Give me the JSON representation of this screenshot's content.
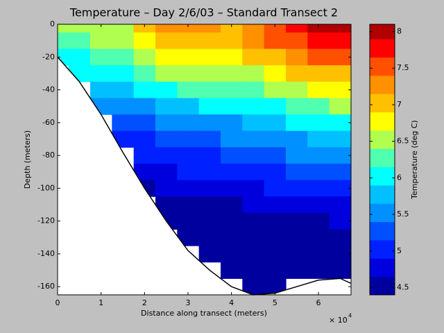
{
  "chart_data": {
    "type": "contour",
    "title": "Temperature – Day 2/6/03 – Standard Transect 2",
    "x_label": "Distance along transect (meters)",
    "y_label": "Depth (meters)",
    "x_multiplier": "× 10",
    "x_exponent": "4",
    "colorbar_label": "Temperature (deg C)",
    "xlim": [
      0,
      6.75
    ],
    "xticks": [
      0,
      1,
      2,
      3,
      4,
      5,
      6
    ],
    "ylim": [
      -165,
      0
    ],
    "yticks": [
      -160,
      -140,
      -120,
      -100,
      -80,
      -60,
      -40,
      -20,
      0
    ],
    "clim": [
      4.4,
      8.1
    ],
    "cticks": [
      4.5,
      5,
      5.5,
      6,
      6.5,
      7,
      7.5,
      8
    ],
    "levels": [
      4.4,
      4.65,
      4.9,
      5.15,
      5.4,
      5.65,
      5.9,
      6.15,
      6.4,
      6.65,
      6.9,
      7.15,
      7.4,
      7.65,
      7.9,
      8.1
    ],
    "colors": [
      "#00009f",
      "#0000df",
      "#0020ff",
      "#0050ff",
      "#0090ff",
      "#00c0ff",
      "#00ffff",
      "#50ffaf",
      "#b0ff50",
      "#ffff00",
      "#ffc000",
      "#ff9000",
      "#ff5000",
      "#ff0000",
      "#b00000"
    ],
    "x": [
      0,
      0.5,
      1,
      1.5,
      2,
      2.5,
      3,
      3.5,
      4,
      4.5,
      5,
      5.5,
      6,
      6.5
    ],
    "depth": [
      0,
      -10,
      -20,
      -30,
      -40,
      -50,
      -60,
      -70,
      -80,
      -90,
      -100,
      -110,
      -120,
      -130,
      -140,
      -150,
      -160
    ],
    "z": [
      [
        6.4,
        6.5,
        6.5,
        6.6,
        6.9,
        7.2,
        7.3,
        7.2,
        7.1,
        7.3,
        7.5,
        7.7,
        7.9,
        8.0
      ],
      [
        6.2,
        6.3,
        6.4,
        6.5,
        6.8,
        7.0,
        7.1,
        7.0,
        7.0,
        7.2,
        7.4,
        7.6,
        7.7,
        7.8
      ],
      [
        6.0,
        6.1,
        6.2,
        6.3,
        6.5,
        6.7,
        6.8,
        6.8,
        6.8,
        7.0,
        7.1,
        7.3,
        7.4,
        7.5
      ],
      [
        null,
        5.9,
        6.0,
        6.1,
        6.2,
        6.4,
        6.5,
        6.5,
        6.5,
        6.6,
        6.8,
        7.0,
        7.1,
        7.1
      ],
      [
        null,
        null,
        5.7,
        5.8,
        5.9,
        6.0,
        6.2,
        6.2,
        6.2,
        6.3,
        6.5,
        6.6,
        6.7,
        6.8
      ],
      [
        null,
        null,
        5.5,
        5.5,
        5.6,
        5.7,
        5.8,
        5.9,
        5.9,
        6.0,
        6.1,
        6.2,
        6.3,
        6.4
      ],
      [
        null,
        null,
        null,
        5.2,
        5.3,
        5.4,
        5.5,
        5.6,
        5.6,
        5.7,
        5.8,
        5.9,
        6.0,
        6.0
      ],
      [
        null,
        null,
        null,
        5.0,
        5.1,
        5.2,
        5.3,
        5.3,
        5.4,
        5.4,
        5.5,
        5.6,
        5.7,
        5.7
      ],
      [
        null,
        null,
        null,
        null,
        4.9,
        5.0,
        5.1,
        5.1,
        5.2,
        5.2,
        5.3,
        5.4,
        5.4,
        5.5
      ],
      [
        null,
        null,
        null,
        null,
        4.8,
        4.8,
        4.9,
        4.9,
        5.0,
        5.0,
        5.1,
        5.2,
        5.2,
        5.2
      ],
      [
        null,
        null,
        null,
        null,
        4.6,
        4.7,
        4.7,
        4.8,
        4.8,
        4.8,
        4.9,
        5.0,
        5.0,
        5.0
      ],
      [
        null,
        null,
        null,
        null,
        null,
        4.6,
        4.6,
        4.6,
        4.6,
        4.7,
        4.7,
        4.8,
        4.8,
        4.8
      ],
      [
        null,
        null,
        null,
        null,
        null,
        4.5,
        4.5,
        4.5,
        4.5,
        4.5,
        4.6,
        4.6,
        4.6,
        4.7
      ],
      [
        null,
        null,
        null,
        null,
        null,
        null,
        4.5,
        4.5,
        4.5,
        4.5,
        4.5,
        4.5,
        4.5,
        4.6
      ],
      [
        null,
        null,
        null,
        null,
        null,
        null,
        null,
        4.5,
        4.5,
        4.5,
        4.5,
        4.5,
        4.5,
        4.5
      ],
      [
        null,
        null,
        null,
        null,
        null,
        null,
        null,
        null,
        4.45,
        4.45,
        4.45,
        4.45,
        4.45,
        4.5
      ],
      [
        null,
        null,
        null,
        null,
        null,
        null,
        null,
        null,
        null,
        4.45,
        4.45,
        null,
        null,
        null
      ]
    ],
    "bottom_x": [
      0,
      0.5,
      1,
      1.5,
      2,
      2.5,
      3,
      3.5,
      4,
      4.5,
      5,
      5.5,
      6,
      6.5,
      6.75
    ],
    "bottom_depth": [
      -20,
      -35,
      -55,
      -78,
      -100,
      -120,
      -138,
      -150,
      -160,
      -165,
      -164,
      -160,
      -156,
      -155,
      -158
    ]
  }
}
